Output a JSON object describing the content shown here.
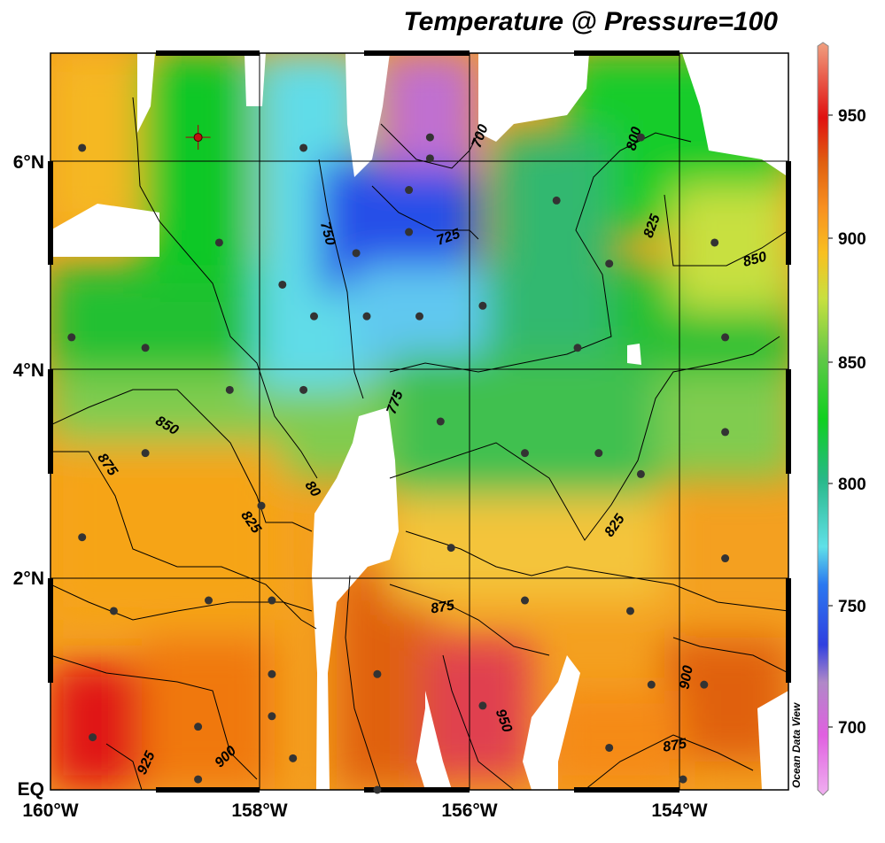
{
  "title": "Temperature @ Pressure=100",
  "credit": "Ocean Data View",
  "map": {
    "x_axis": {
      "ticks": [
        "160°W",
        "158°W",
        "156°W",
        "154°W"
      ],
      "range": [
        -160,
        -153
      ]
    },
    "y_axis": {
      "ticks": [
        "EQ",
        "2°N",
        "4°N",
        "6°N"
      ],
      "range": [
        0,
        7
      ]
    },
    "colorbar": {
      "ticks": [
        "950",
        "900",
        "850",
        "800",
        "750",
        "700"
      ],
      "range": [
        675,
        975
      ],
      "colors": [
        "#e870e0",
        "#c080c8",
        "#4050e0",
        "#2080f0",
        "#60e0e8",
        "#28c890",
        "#10d020",
        "#70d060",
        "#c8e040",
        "#f8c020",
        "#f89020",
        "#e06010",
        "#e02020",
        "#f08080"
      ]
    },
    "contour_labels": [
      "700",
      "725",
      "750",
      "775",
      "800",
      "825",
      "850",
      "875",
      "900",
      "925",
      "950",
      "80"
    ],
    "stations": [
      {
        "lon": -159.7,
        "lat": 6.1
      },
      {
        "lon": -158.6,
        "lat": 6.2
      },
      {
        "lon": -157.6,
        "lat": 6.1
      },
      {
        "lon": -156.4,
        "lat": 6.2
      },
      {
        "lon": -156.4,
        "lat": 6.0
      },
      {
        "lon": -156.6,
        "lat": 5.7
      },
      {
        "lon": -156.6,
        "lat": 5.3
      },
      {
        "lon": -158.4,
        "lat": 5.2
      },
      {
        "lon": -157.1,
        "lat": 5.1
      },
      {
        "lon": -157.8,
        "lat": 4.8
      },
      {
        "lon": -157.5,
        "lat": 4.5
      },
      {
        "lon": -157.0,
        "lat": 4.5
      },
      {
        "lon": -156.5,
        "lat": 4.5
      },
      {
        "lon": -155.9,
        "lat": 4.6
      },
      {
        "lon": -155.2,
        "lat": 5.6
      },
      {
        "lon": -154.4,
        "lat": 6.2
      },
      {
        "lon": -154.7,
        "lat": 5.0
      },
      {
        "lon": -153.7,
        "lat": 5.2
      },
      {
        "lon": -155.0,
        "lat": 4.2
      },
      {
        "lon": -153.6,
        "lat": 4.3
      },
      {
        "lon": -159.8,
        "lat": 4.3
      },
      {
        "lon": -159.1,
        "lat": 4.2
      },
      {
        "lon": -158.3,
        "lat": 3.8
      },
      {
        "lon": -157.6,
        "lat": 3.8
      },
      {
        "lon": -156.3,
        "lat": 3.5
      },
      {
        "lon": -155.5,
        "lat": 3.2
      },
      {
        "lon": -154.8,
        "lat": 3.2
      },
      {
        "lon": -154.4,
        "lat": 3.0
      },
      {
        "lon": -153.6,
        "lat": 3.4
      },
      {
        "lon": -159.1,
        "lat": 3.2
      },
      {
        "lon": -158.0,
        "lat": 2.7
      },
      {
        "lon": -159.7,
        "lat": 2.4
      },
      {
        "lon": -156.2,
        "lat": 2.3
      },
      {
        "lon": -153.6,
        "lat": 2.2
      },
      {
        "lon": -159.4,
        "lat": 1.7
      },
      {
        "lon": -158.5,
        "lat": 1.8
      },
      {
        "lon": -157.9,
        "lat": 1.8
      },
      {
        "lon": -155.5,
        "lat": 1.8
      },
      {
        "lon": -154.5,
        "lat": 1.7
      },
      {
        "lon": -157.9,
        "lat": 1.1
      },
      {
        "lon": -156.9,
        "lat": 1.1
      },
      {
        "lon": -155.9,
        "lat": 0.8
      },
      {
        "lon": -154.3,
        "lat": 1.0
      },
      {
        "lon": -153.8,
        "lat": 1.0
      },
      {
        "lon": -159.6,
        "lat": 0.5
      },
      {
        "lon": -158.6,
        "lat": 0.6
      },
      {
        "lon": -157.9,
        "lat": 0.7
      },
      {
        "lon": -157.7,
        "lat": 0.3
      },
      {
        "lon": -154.7,
        "lat": 0.4
      },
      {
        "lon": -156.9,
        "lat": 0.0
      },
      {
        "lon": -154.0,
        "lat": 0.1
      },
      {
        "lon": -158.6,
        "lat": 0.1
      }
    ],
    "highlight_station": {
      "lon": -158.6,
      "lat": 6.2
    }
  }
}
